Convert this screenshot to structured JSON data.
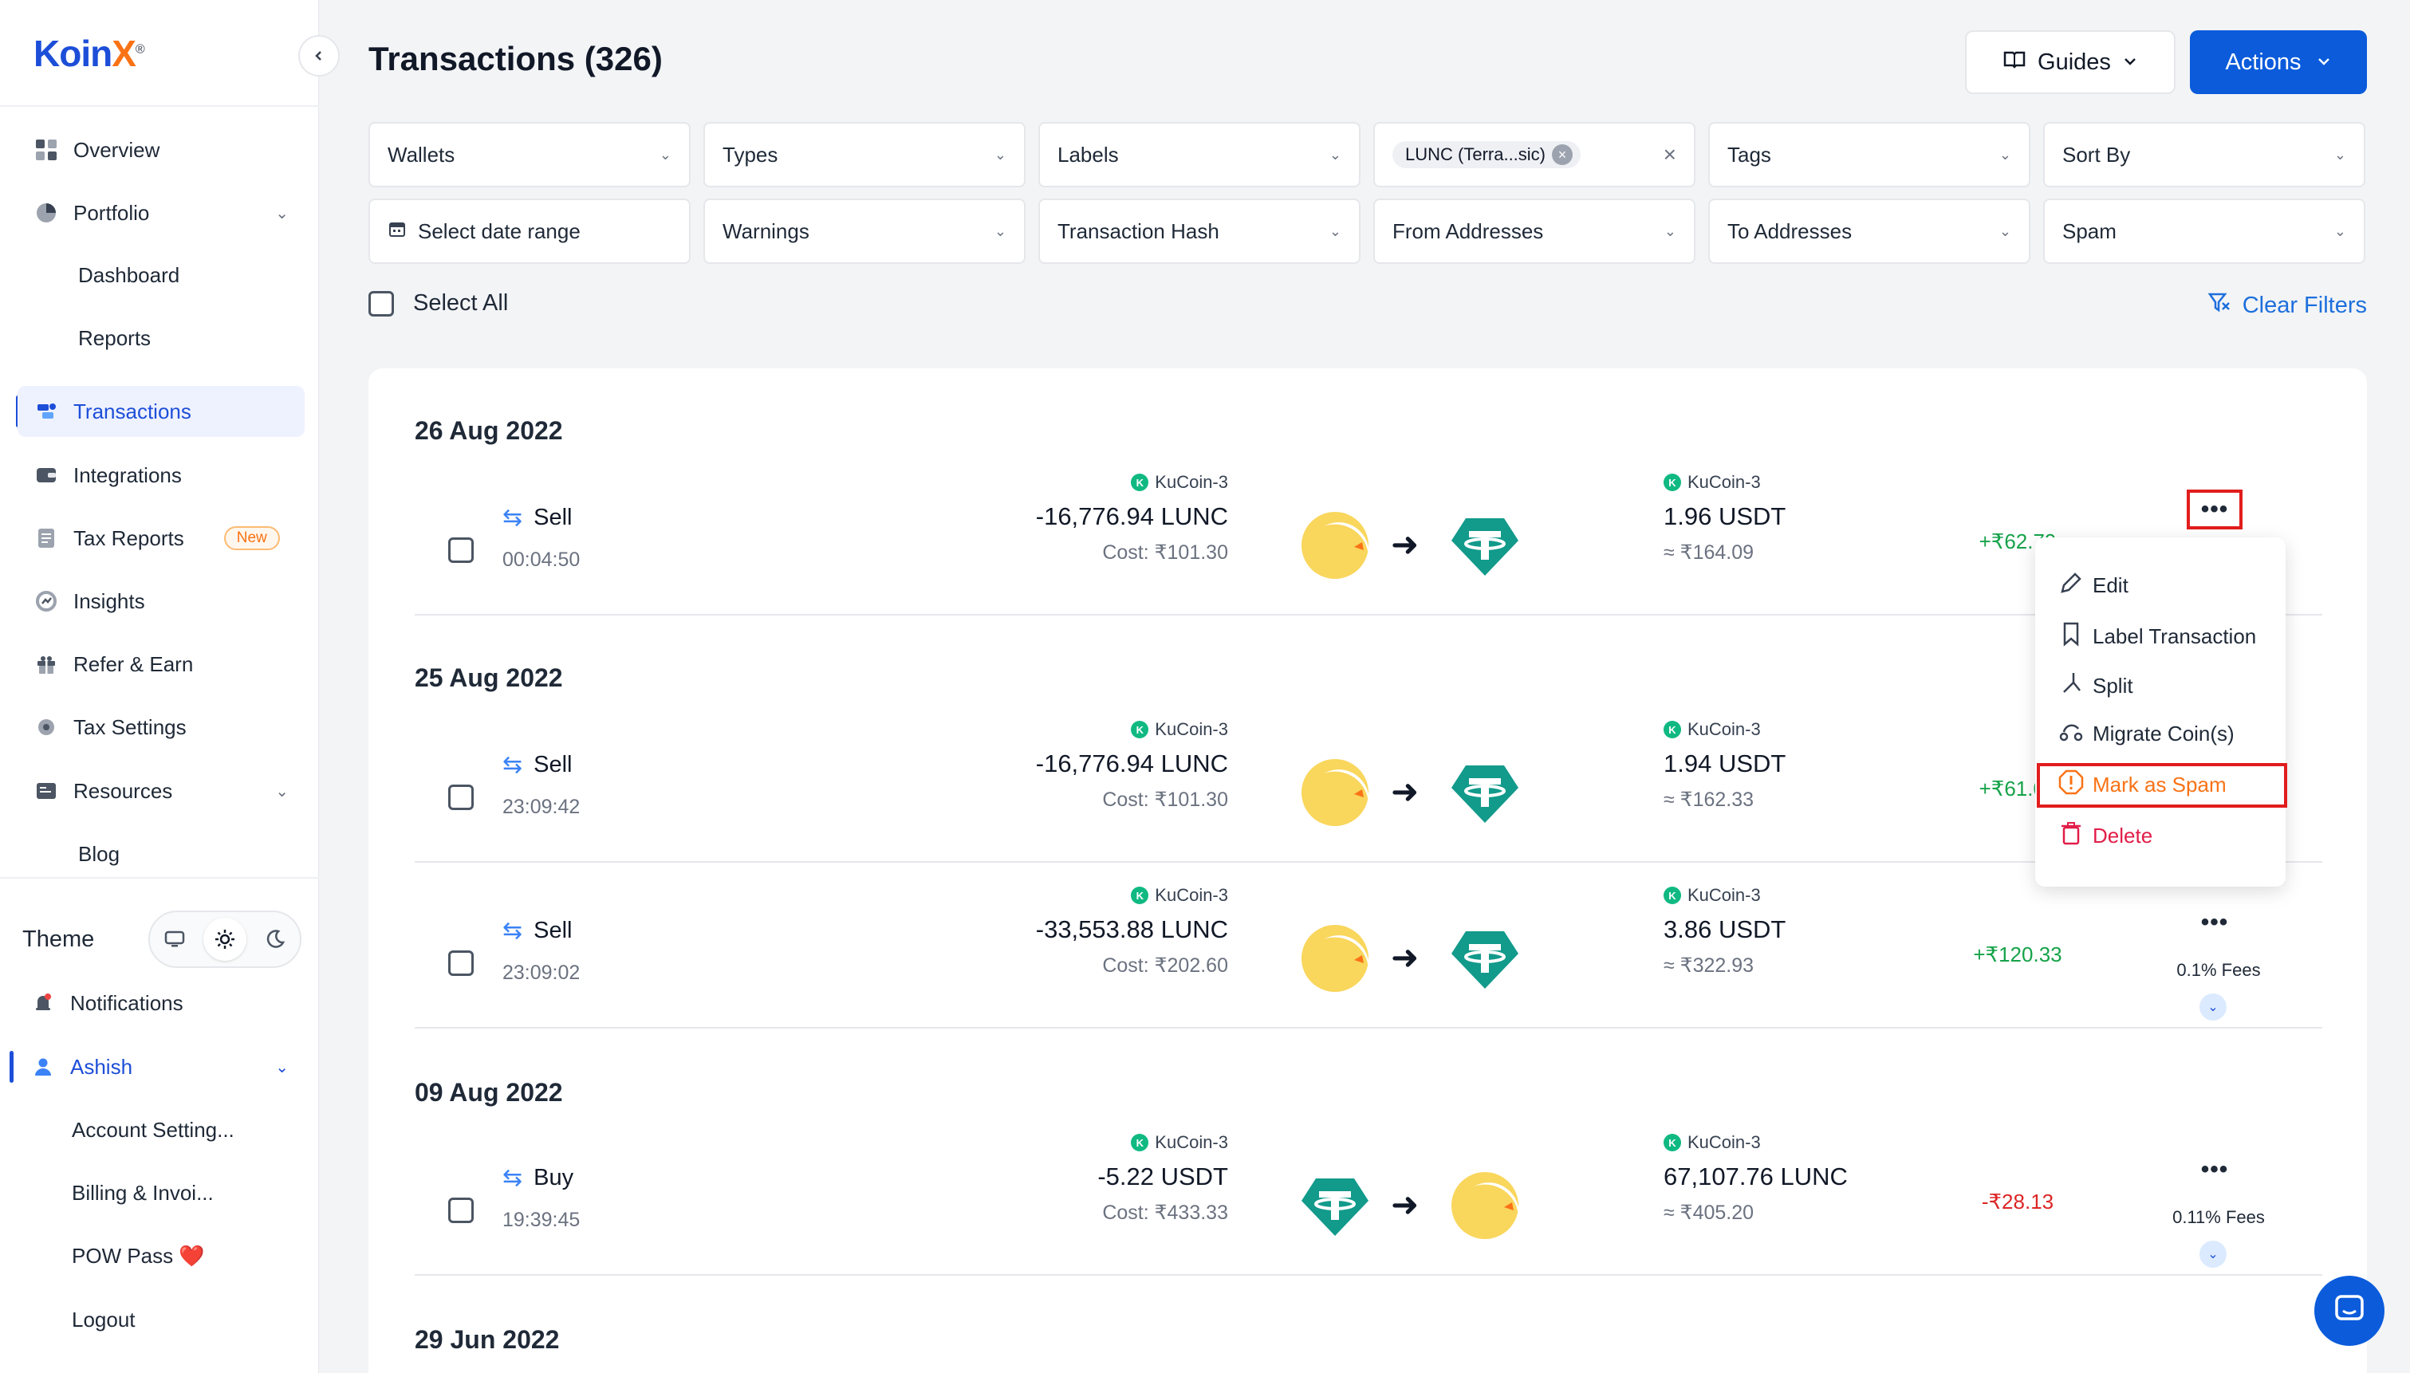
{
  "app": {
    "logo_text_main": "Koin",
    "logo_text_accent": "X",
    "logo_mark": "®"
  },
  "sidebar": {
    "items": [
      {
        "label": "Overview",
        "icon": "grid-icon"
      },
      {
        "label": "Portfolio",
        "icon": "pie-chart-icon"
      },
      {
        "label": "Dashboard"
      },
      {
        "label": "Reports"
      },
      {
        "label": "Transactions",
        "icon": "transactions-icon"
      },
      {
        "label": "Integrations",
        "icon": "wallet-icon"
      },
      {
        "label": "Tax Reports",
        "icon": "document-icon",
        "badge": "New"
      },
      {
        "label": "Insights",
        "icon": "insights-icon"
      },
      {
        "label": "Refer & Earn",
        "icon": "gift-icon"
      },
      {
        "label": "Tax Settings",
        "icon": "gear-icon"
      },
      {
        "label": "Resources",
        "icon": "resources-icon"
      },
      {
        "label": "Blog"
      }
    ],
    "theme_label": "Theme",
    "bottom_items": [
      {
        "label": "Notifications",
        "icon": "bell-icon"
      },
      {
        "label": "Ashish",
        "icon": "user-icon"
      },
      {
        "label": "Account Setting..."
      },
      {
        "label": "Billing & Invoi..."
      },
      {
        "label": "POW Pass ❤️"
      },
      {
        "label": "Logout"
      }
    ]
  },
  "header": {
    "title": "Transactions (326)",
    "guides_label": "Guides",
    "actions_label": "Actions"
  },
  "filters": {
    "row1": [
      "Wallets",
      "Types",
      "Labels",
      "",
      "Tags",
      "Sort By"
    ],
    "asset_chip": "LUNC (Terra...sic)",
    "row2": [
      "Select date range",
      "Warnings",
      "Transaction Hash",
      "From Addresses",
      "To Addresses",
      "Spam"
    ],
    "select_all": "Select All",
    "clear_filters": "Clear Filters"
  },
  "groups": [
    {
      "date": "26 Aug 2022"
    },
    {
      "date": "25 Aug 2022"
    },
    {
      "date": "09 Aug 2022"
    },
    {
      "date": "29 Jun 2022"
    }
  ],
  "transactions": [
    {
      "type": "Sell",
      "time": "00:04:50",
      "from_wallet": "KuCoin-3",
      "from_amount": "-16,776.94 LUNC",
      "from_sub": "Cost: ₹101.30",
      "to_wallet": "KuCoin-3",
      "to_amount": "1.96 USDT",
      "to_sub": "≈ ₹164.09",
      "gain": "+₹62.79",
      "fees": "",
      "from_coin": "LUNC",
      "to_coin": "USDT"
    },
    {
      "type": "Sell",
      "time": "23:09:42",
      "from_wallet": "KuCoin-3",
      "from_amount": "-16,776.94 LUNC",
      "from_sub": "Cost: ₹101.30",
      "to_wallet": "KuCoin-3",
      "to_amount": "1.94 USDT",
      "to_sub": "≈ ₹162.33",
      "gain": "+₹61.03",
      "fees": "",
      "from_coin": "LUNC",
      "to_coin": "USDT"
    },
    {
      "type": "Sell",
      "time": "23:09:02",
      "from_wallet": "KuCoin-3",
      "from_amount": "-33,553.88 LUNC",
      "from_sub": "Cost: ₹202.60",
      "to_wallet": "KuCoin-3",
      "to_amount": "3.86 USDT",
      "to_sub": "≈ ₹322.93",
      "gain": "+₹120.33",
      "fees": "0.1% Fees",
      "from_coin": "LUNC",
      "to_coin": "USDT"
    },
    {
      "type": "Buy",
      "time": "19:39:45",
      "from_wallet": "KuCoin-3",
      "from_amount": "-5.22 USDT",
      "from_sub": "Cost: ₹433.33",
      "to_wallet": "KuCoin-3",
      "to_amount": "67,107.76 LUNC",
      "to_sub": "≈ ₹405.20",
      "gain": "-₹28.13",
      "fees": "0.11% Fees",
      "from_coin": "USDT",
      "to_coin": "LUNC"
    }
  ],
  "menu": {
    "items": [
      "Edit",
      "Label Transaction",
      "Split",
      "Migrate Coin(s)",
      "Mark as Spam",
      "Delete"
    ]
  },
  "colors": {
    "accent": "#0b5bdb",
    "gain_positive": "#16a34a",
    "gain_negative": "#dc2626",
    "highlight": "#e11d1d",
    "spam": "#f97316",
    "delete": "#e11d48"
  }
}
